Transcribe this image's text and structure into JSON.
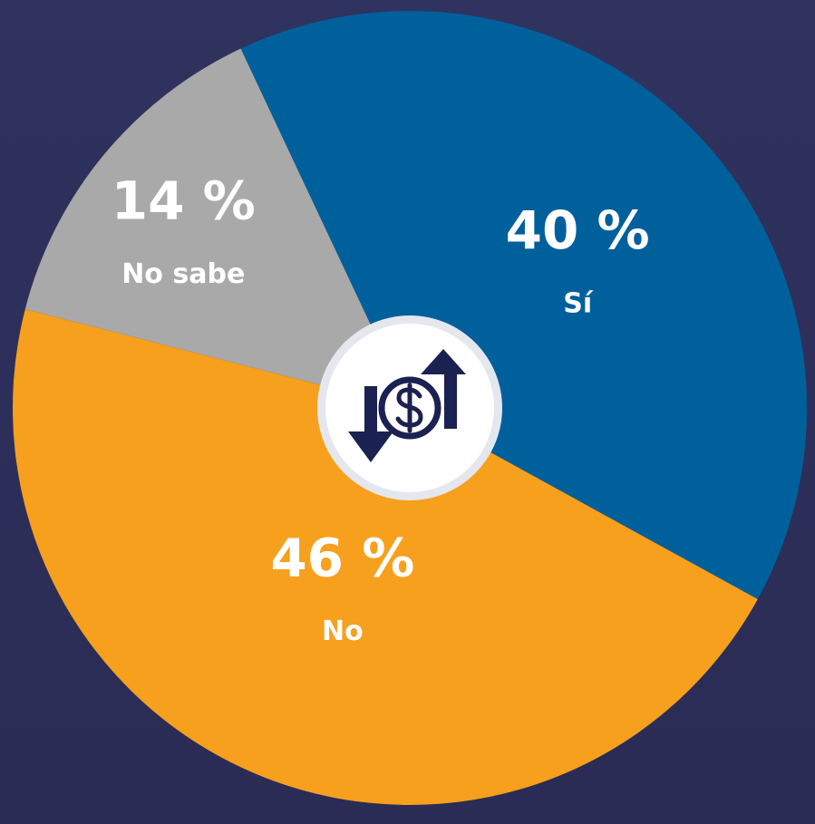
{
  "chart_data": {
    "type": "pie",
    "categories": [
      "Sí",
      "No",
      "No sabe"
    ],
    "values": [
      40,
      46,
      14
    ],
    "value_labels": [
      "40 %",
      "46 %",
      "14 %"
    ],
    "colors": [
      "#00609c",
      "#f7a01e",
      "#a9a9a9"
    ]
  }
}
